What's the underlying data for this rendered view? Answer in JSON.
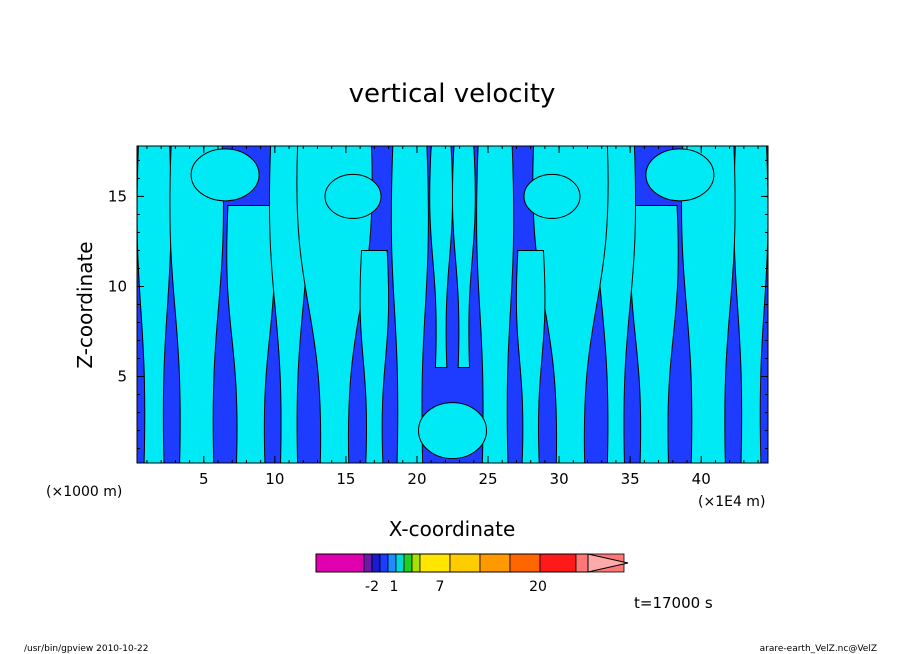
{
  "chart_data": {
    "type": "heatmap",
    "title": "vertical velocity",
    "xlabel": "X-coordinate",
    "ylabel": "Z-coordinate",
    "x_unit": "(×1E4 m)",
    "y_unit": "(×1000 m)",
    "xlim": [
      0.3,
      44.7
    ],
    "ylim": [
      0.2,
      17.8
    ],
    "x_ticks": [
      5,
      10,
      15,
      20,
      25,
      30,
      35,
      40
    ],
    "y_ticks": [
      5,
      10,
      15
    ],
    "colorbar": {
      "labels": [
        {
          "text": "-2",
          "value": -2
        },
        {
          "text": "1",
          "value": 1
        },
        {
          "text": "7",
          "value": 7
        },
        {
          "text": "20",
          "value": 20
        }
      ],
      "colors": [
        "#e000b0",
        "#6a1aa8",
        "#1a1ad0",
        "#1c3cff",
        "#1c8cff",
        "#00d8d8",
        "#20d020",
        "#a8e000",
        "#ffe600",
        "#ffcc00",
        "#ff9900",
        "#ff6600",
        "#ff1a1a",
        "#ff7777",
        "#ffaaaa"
      ]
    },
    "field_colors": {
      "negative": "#1e3cff",
      "positive": "#00eaf5"
    },
    "time_label": "t=17000 s"
  },
  "footer": {
    "left": "/usr/bin/gpview   2010-10-22",
    "right": "arare-earth_VelZ.nc@VelZ"
  }
}
